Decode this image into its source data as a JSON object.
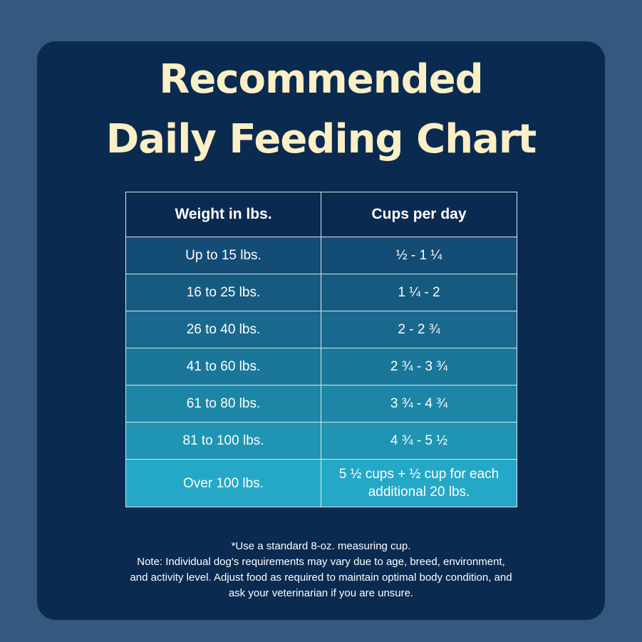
{
  "title": {
    "line1": "Recommended",
    "line2": "Daily Feeding Chart"
  },
  "table": {
    "headers": [
      "Weight in lbs.",
      "Cups per day"
    ],
    "rows": [
      {
        "weight": "Up to 15 lbs.",
        "cups": "½ - 1 ¼"
      },
      {
        "weight": "16 to 25 lbs.",
        "cups": "1 ¼ - 2"
      },
      {
        "weight": "26 to 40 lbs.",
        "cups": "2 - 2 ¾"
      },
      {
        "weight": "41 to 60 lbs.",
        "cups": "2 ¾ - 3 ¾"
      },
      {
        "weight": "61 to 80 lbs.",
        "cups": "3 ¾ - 4 ¾"
      },
      {
        "weight": "81 to 100 lbs.",
        "cups": "4 ¾ - 5 ½"
      },
      {
        "weight": "Over 100 lbs.",
        "cups_line1": "5 ½ cups  + ½ cup for each",
        "cups_line2": "additional 20 lbs."
      }
    ]
  },
  "notes": {
    "measuring_cup": "*Use a standard 8-oz. measuring cup.",
    "line1": "Note: Individual dog's requirements may vary due to age, breed, environment,",
    "line2": "and activity level. Adjust food as required to maintain optimal body condition, and",
    "line3": "ask your veterinarian if you are unsure."
  },
  "colors": {
    "page_background": "#35587e",
    "card_background": "#0b2a50",
    "title_text": "#fbefc6",
    "row_gradient": [
      "#134c74",
      "#175a80",
      "#19698e",
      "#1b7799",
      "#1d86a6",
      "#1f95b3",
      "#25a8c7"
    ]
  }
}
